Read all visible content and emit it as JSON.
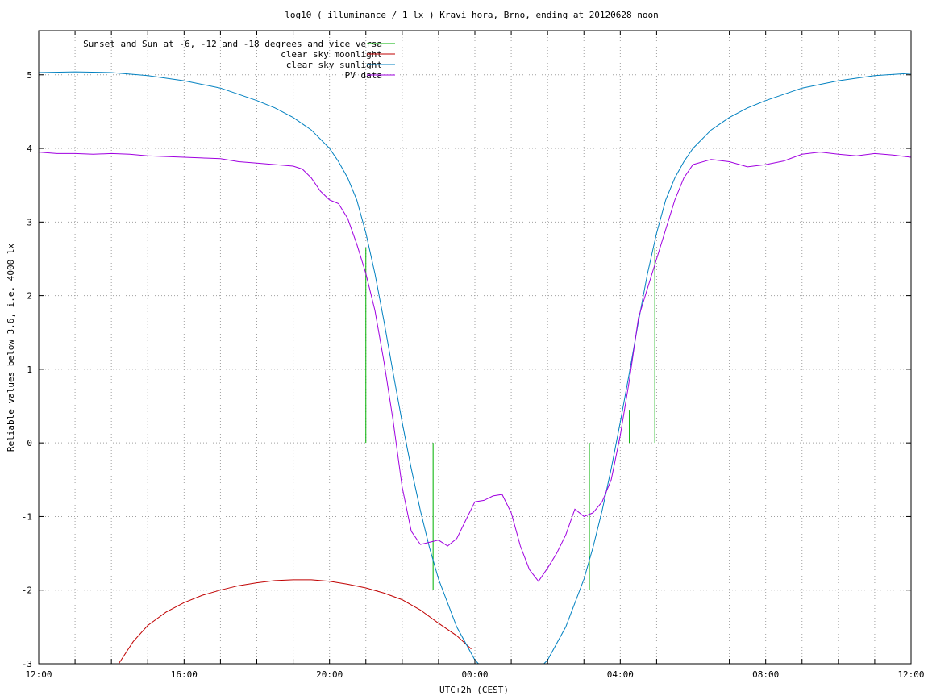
{
  "chart_data": {
    "type": "line",
    "title": "log10 ( illuminance / 1 lx ) Kravi hora, Brno, ending at 20120628 noon",
    "xlabel": "UTC+2h (CEST)",
    "ylabel": "Reliable values below 3.6, i.e. 4000 lx",
    "xlim": [
      0,
      24
    ],
    "ylim": [
      -3,
      5.6
    ],
    "x_unit": "hours since 12:00 UTC+2h",
    "x_ticks": [
      {
        "value": 0,
        "label": "12:00"
      },
      {
        "value": 4,
        "label": "16:00"
      },
      {
        "value": 8,
        "label": "20:00"
      },
      {
        "value": 12,
        "label": "00:00"
      },
      {
        "value": 16,
        "label": "04:00"
      },
      {
        "value": 20,
        "label": "08:00"
      },
      {
        "value": 24,
        "label": "12:00"
      }
    ],
    "y_ticks": [
      -3,
      -2,
      -1,
      0,
      1,
      2,
      3,
      4,
      5
    ],
    "x_minor_step": 1,
    "grid": true,
    "legend_position": "top-left",
    "series": [
      {
        "name": "Sunset and Sun at -6, -12 and -18 degrees and vice versa",
        "color": "#00b000",
        "style": "vertical-markers",
        "markers": [
          {
            "x": 9.0,
            "y_top": 2.65
          },
          {
            "x": 9.75,
            "y_top": 0.45
          },
          {
            "x": 10.85,
            "y_top": 0.0,
            "y_bottom": -2.0
          },
          {
            "x": 15.15,
            "y_top": 0.0,
            "y_bottom": -2.0
          },
          {
            "x": 16.25,
            "y_top": 0.45
          },
          {
            "x": 16.95,
            "y_top": 2.65
          }
        ]
      },
      {
        "name": "clear sky moonlight",
        "color": "#c00000",
        "style": "line",
        "x": [
          2.2,
          2.6,
          3.0,
          3.5,
          4.0,
          4.5,
          5.0,
          5.5,
          6.0,
          6.5,
          7.0,
          7.5,
          8.0,
          8.5,
          9.0,
          9.5,
          10.0,
          10.5,
          11.0,
          11.5,
          11.9
        ],
        "y": [
          -3.0,
          -2.7,
          -2.48,
          -2.3,
          -2.17,
          -2.07,
          -2.0,
          -1.94,
          -1.9,
          -1.87,
          -1.86,
          -1.86,
          -1.88,
          -1.92,
          -1.97,
          -2.04,
          -2.13,
          -2.27,
          -2.45,
          -2.62,
          -2.8
        ]
      },
      {
        "name": "clear sky sunlight",
        "color": "#0080c0",
        "style": "line",
        "x": [
          0,
          1,
          2,
          3,
          4,
          5,
          6,
          6.5,
          7,
          7.5,
          8,
          8.25,
          8.5,
          8.75,
          9,
          9.25,
          9.5,
          9.75,
          10,
          10.25,
          10.5,
          10.75,
          11,
          11.5,
          12,
          12.5,
          13,
          13.5,
          14,
          14.5,
          15,
          15.25,
          15.5,
          15.75,
          16,
          16.25,
          16.5,
          16.75,
          17,
          17.25,
          17.5,
          17.75,
          18,
          18.5,
          19,
          19.5,
          20,
          21,
          22,
          23,
          24
        ],
        "y": [
          5.03,
          5.04,
          5.03,
          4.99,
          4.92,
          4.82,
          4.65,
          4.55,
          4.42,
          4.25,
          4.0,
          3.82,
          3.6,
          3.3,
          2.85,
          2.3,
          1.65,
          0.95,
          0.28,
          -0.35,
          -0.92,
          -1.42,
          -1.85,
          -2.5,
          -2.95,
          -3.2,
          -3.3,
          -3.2,
          -2.95,
          -2.5,
          -1.85,
          -1.42,
          -0.92,
          -0.35,
          0.28,
          0.95,
          1.65,
          2.3,
          2.85,
          3.3,
          3.6,
          3.82,
          4.0,
          4.25,
          4.42,
          4.55,
          4.65,
          4.82,
          4.92,
          4.99,
          5.02
        ]
      },
      {
        "name": "PV data",
        "color": "#a000e0",
        "style": "line",
        "x": [
          0,
          0.5,
          1,
          1.5,
          2,
          2.5,
          3,
          3.5,
          4,
          4.5,
          5,
          5.5,
          6,
          6.5,
          7,
          7.25,
          7.5,
          7.75,
          8,
          8.25,
          8.5,
          8.75,
          9,
          9.25,
          9.5,
          9.75,
          10,
          10.25,
          10.5,
          10.75,
          11,
          11.25,
          11.5,
          11.75,
          12,
          12.25,
          12.5,
          12.75,
          13,
          13.25,
          13.5,
          13.75,
          14,
          14.25,
          14.5,
          14.75,
          15,
          15.25,
          15.5,
          15.75,
          16,
          16.25,
          16.5,
          16.75,
          17,
          17.25,
          17.5,
          17.75,
          18,
          18.5,
          19,
          19.5,
          20,
          20.5,
          21,
          21.5,
          22,
          22.5,
          23,
          23.5,
          24
        ],
        "y": [
          3.95,
          3.93,
          3.93,
          3.92,
          3.93,
          3.92,
          3.9,
          3.89,
          3.88,
          3.87,
          3.86,
          3.82,
          3.8,
          3.78,
          3.76,
          3.72,
          3.6,
          3.42,
          3.3,
          3.25,
          3.05,
          2.7,
          2.3,
          1.8,
          1.1,
          0.3,
          -0.6,
          -1.2,
          -1.38,
          -1.35,
          -1.32,
          -1.4,
          -1.3,
          -1.05,
          -0.8,
          -0.78,
          -0.72,
          -0.7,
          -0.95,
          -1.4,
          -1.72,
          -1.88,
          -1.7,
          -1.5,
          -1.25,
          -0.9,
          -1.0,
          -0.95,
          -0.8,
          -0.5,
          0.1,
          0.85,
          1.7,
          2.1,
          2.5,
          2.9,
          3.3,
          3.6,
          3.78,
          3.85,
          3.82,
          3.75,
          3.78,
          3.83,
          3.92,
          3.95,
          3.92,
          3.9,
          3.93,
          3.91,
          3.88
        ]
      }
    ]
  }
}
